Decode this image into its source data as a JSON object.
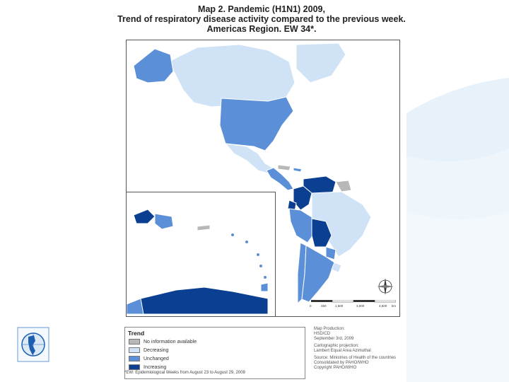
{
  "title": {
    "line1": "Map 2. Pandemic (H1N1) 2009,",
    "line2": "Trend of respiratory disease activity compared to the previous week.",
    "line3": "Americas Region. EW 34*."
  },
  "legend": {
    "title": "Trend",
    "items": [
      {
        "label": "No information available",
        "color": "#b8b8b8"
      },
      {
        "label": "Decreasing",
        "color": "#cfe2f6"
      },
      {
        "label": "Unchanged",
        "color": "#5b8fd8"
      },
      {
        "label": "Increasing",
        "color": "#0a3f91"
      }
    ]
  },
  "footnote": "*EW: Epidemiological Weeks from August 23 to August 29, 2009",
  "credits": {
    "production": "Map Production:",
    "unit": "HSD/CD",
    "date": "September 3rd, 2009",
    "projection_label": "Cartographic projection:",
    "projection": "Lambert Equal Area Azimuthal",
    "source_label": "Source: Ministries of Health of the countries",
    "consolidated": "Consolidated by PAHO/WHO",
    "copyright": "Copyright PAHO/WHO"
  },
  "scale": {
    "ticks": [
      "0",
      "250",
      "1,500",
      "3,000",
      "4,500"
    ],
    "unit": "km"
  },
  "colors": {
    "no_info": "#b8b8b8",
    "decreasing": "#cfe2f6",
    "unchanged": "#5b8fd8",
    "increasing": "#0a3f91",
    "border": "#ffffff"
  }
}
